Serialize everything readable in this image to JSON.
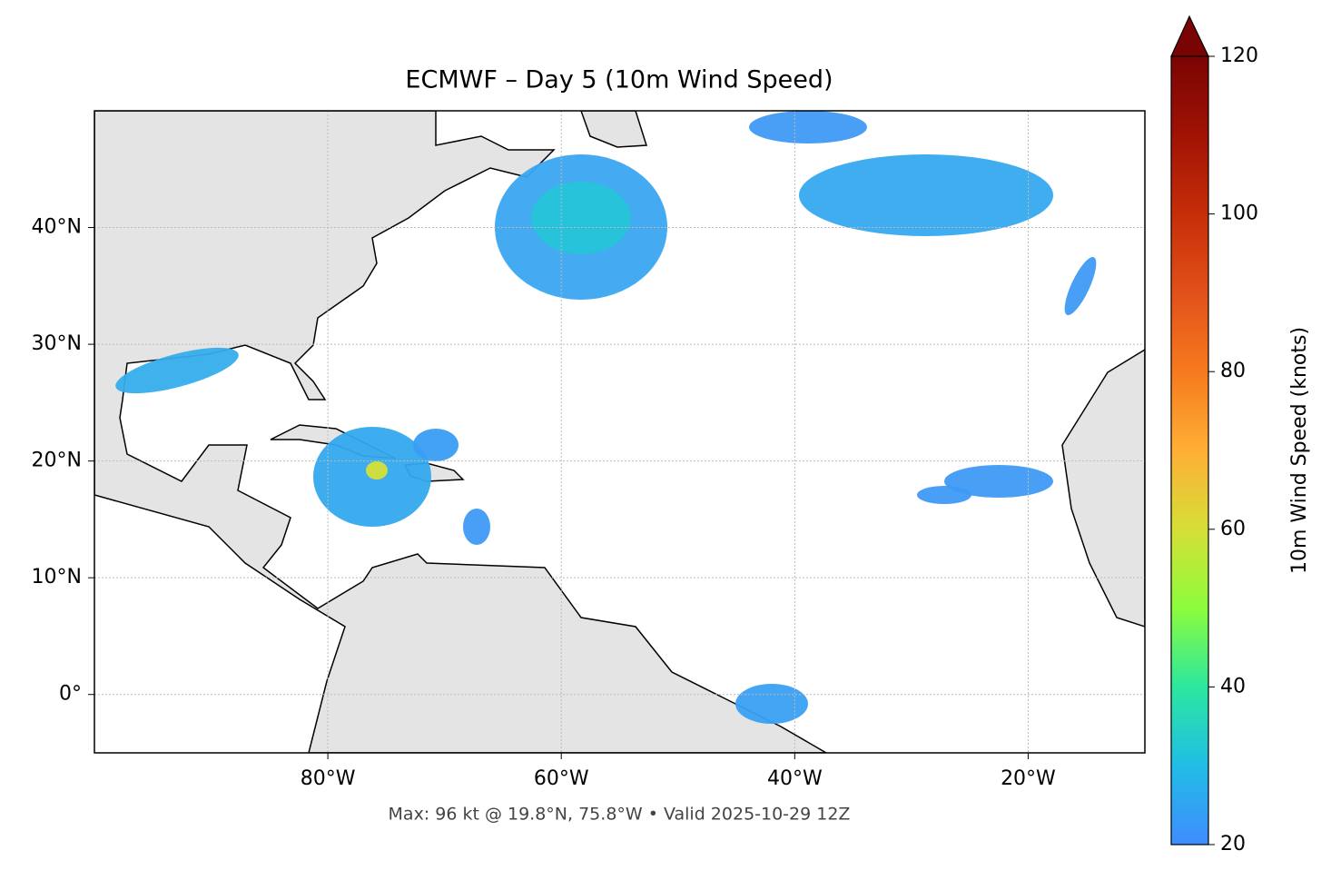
{
  "chart_data": {
    "type": "map",
    "title": "ECMWF – Day 5 (10m Wind Speed)",
    "subtitle": "Max: 96 kt @ 19.8°N, 75.8°W • Valid 2025-10-29 12Z",
    "xlim": [
      -100,
      -10
    ],
    "ylim": [
      -5,
      50
    ],
    "xticks": [
      {
        "value": -80,
        "label": "80°W"
      },
      {
        "value": -60,
        "label": "60°W"
      },
      {
        "value": -40,
        "label": "40°W"
      },
      {
        "value": -20,
        "label": "20°W"
      }
    ],
    "yticks": [
      {
        "value": 0,
        "label": "0°"
      },
      {
        "value": 10,
        "label": "10°N"
      },
      {
        "value": 20,
        "label": "20°N"
      },
      {
        "value": 30,
        "label": "30°N"
      },
      {
        "value": 40,
        "label": "40°N"
      }
    ],
    "grid": true,
    "colorbar": {
      "label": "10m Wind Speed (knots)",
      "lim": [
        20,
        120
      ],
      "ticks": [
        20,
        40,
        60,
        80,
        100,
        120
      ]
    }
  }
}
